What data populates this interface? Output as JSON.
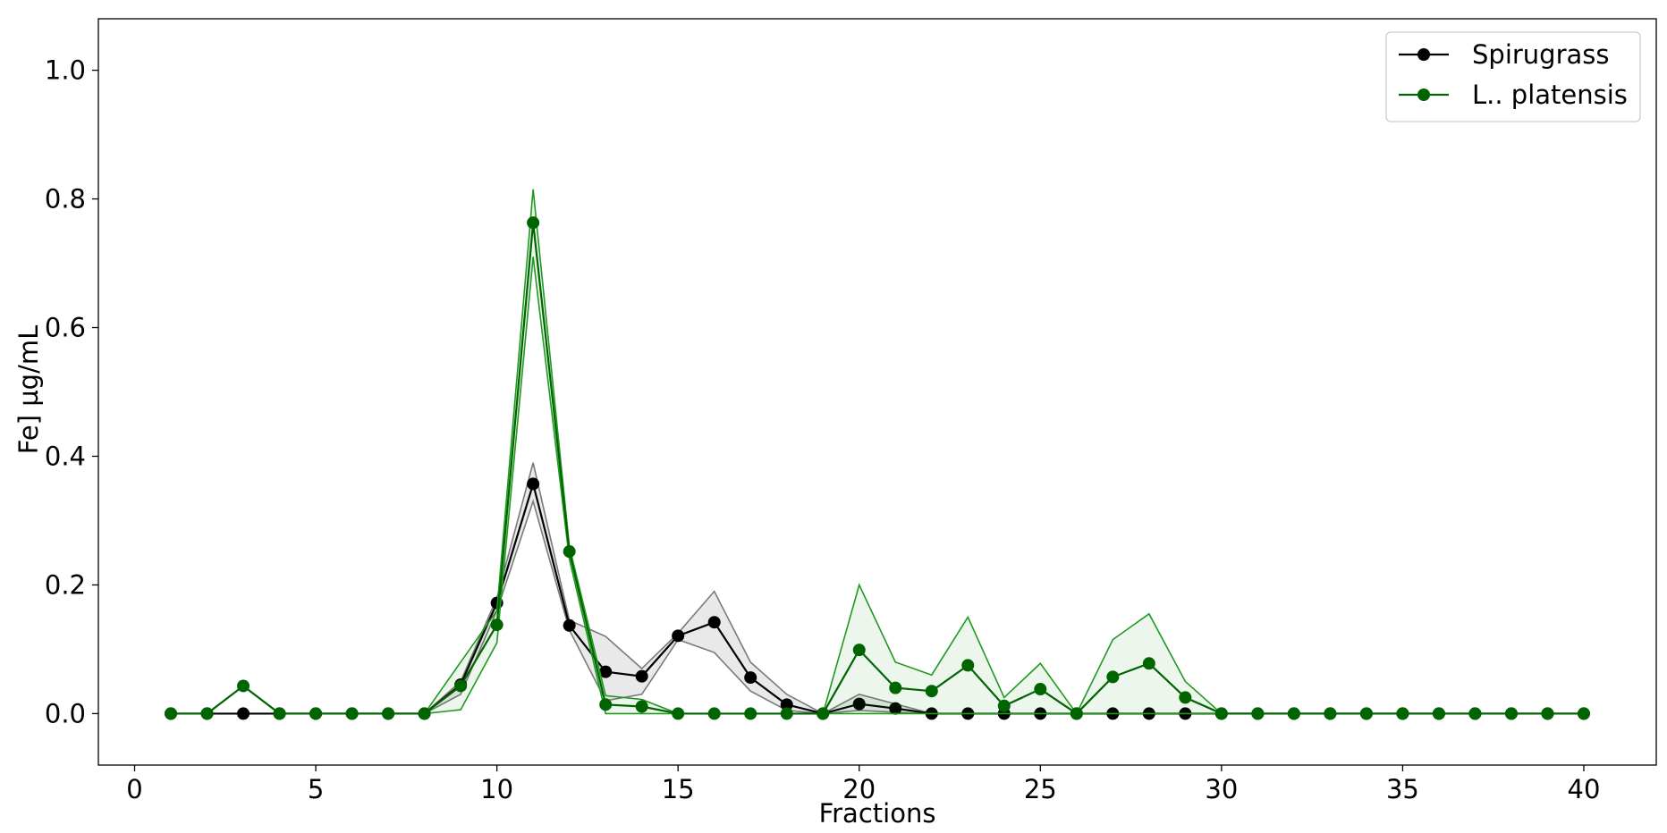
{
  "chart_data": {
    "type": "line",
    "title": "",
    "xlabel": "Fractions",
    "ylabel": "Fe] µg/mL",
    "xlim": [
      -1,
      42
    ],
    "ylim": [
      -0.08,
      1.08
    ],
    "xticks": [
      0,
      5,
      10,
      15,
      20,
      25,
      30,
      35,
      40
    ],
    "yticks": [
      0.0,
      0.2,
      0.4,
      0.6,
      0.8,
      1.0
    ],
    "xtick_labels": [
      "0",
      "5",
      "10",
      "15",
      "20",
      "25",
      "30",
      "35",
      "40"
    ],
    "ytick_labels": [
      "0.0",
      "0.2",
      "0.4",
      "0.6",
      "0.8",
      "1.0"
    ],
    "grid": false,
    "legend_position": "top-right",
    "x": [
      1,
      2,
      3,
      4,
      5,
      6,
      7,
      8,
      9,
      10,
      11,
      12,
      13,
      14,
      15,
      16,
      17,
      18,
      19,
      20,
      21,
      22,
      23,
      24,
      25,
      26,
      27,
      28,
      29,
      30,
      31,
      32,
      33,
      34,
      35,
      36,
      37,
      38,
      39,
      40
    ],
    "series": [
      {
        "name": "Spirugrass",
        "color": "#000000",
        "band_color": "#b0b0b0",
        "values": [
          0,
          0,
          0,
          0,
          0,
          0,
          0,
          0,
          0.045,
          0.172,
          0.357,
          0.137,
          0.065,
          0.058,
          0.121,
          0.142,
          0.056,
          0.014,
          0,
          0.015,
          0.008,
          0,
          0,
          0,
          0,
          0,
          0,
          0,
          0,
          0,
          0,
          0,
          0,
          0,
          0,
          0,
          0,
          0,
          0,
          0
        ],
        "upper": [
          0,
          0,
          0,
          0,
          0,
          0,
          0,
          0,
          0.05,
          0.18,
          0.39,
          0.145,
          0.12,
          0.07,
          0.125,
          0.19,
          0.08,
          0.03,
          0,
          0.03,
          0.015,
          0,
          0,
          0,
          0,
          0,
          0,
          0,
          0,
          0,
          0,
          0,
          0,
          0,
          0,
          0,
          0,
          0,
          0,
          0
        ],
        "lower": [
          0,
          0,
          0,
          0,
          0,
          0,
          0,
          0,
          0.03,
          0.16,
          0.33,
          0.13,
          0.02,
          0.03,
          0.115,
          0.095,
          0.035,
          0.005,
          0,
          0.005,
          0.002,
          0,
          0,
          0,
          0,
          0,
          0,
          0,
          0,
          0,
          0,
          0,
          0,
          0,
          0,
          0,
          0,
          0,
          0,
          0
        ]
      },
      {
        "name": "L.. platensis",
        "color": "#006400",
        "band_color": "#1f8f1f",
        "values": [
          0,
          0,
          0.043,
          0,
          0,
          0,
          0,
          0,
          0.043,
          0.138,
          0.763,
          0.252,
          0.014,
          0.011,
          0,
          0,
          0,
          0,
          0,
          0.099,
          0.04,
          0.035,
          0.075,
          0.012,
          0.038,
          0,
          0.057,
          0.078,
          0.025,
          0,
          0,
          0,
          0,
          0,
          0,
          0,
          0,
          0,
          0,
          0
        ],
        "upper": [
          0,
          0,
          0.043,
          0,
          0,
          0,
          0,
          0,
          0.08,
          0.16,
          0.815,
          0.26,
          0.028,
          0.022,
          0,
          0,
          0,
          0,
          0,
          0.2,
          0.08,
          0.06,
          0.15,
          0.025,
          0.078,
          0,
          0.115,
          0.155,
          0.05,
          0,
          0,
          0,
          0,
          0,
          0,
          0,
          0,
          0,
          0,
          0
        ],
        "lower": [
          0,
          0,
          0.043,
          0,
          0,
          0,
          0,
          0,
          0.006,
          0.11,
          0.71,
          0.24,
          0,
          0,
          0,
          0,
          0,
          0,
          0,
          0,
          0,
          0,
          0,
          0,
          0,
          0,
          0,
          0,
          0,
          0,
          0,
          0,
          0,
          0,
          0,
          0,
          0,
          0,
          0,
          0
        ]
      }
    ]
  }
}
